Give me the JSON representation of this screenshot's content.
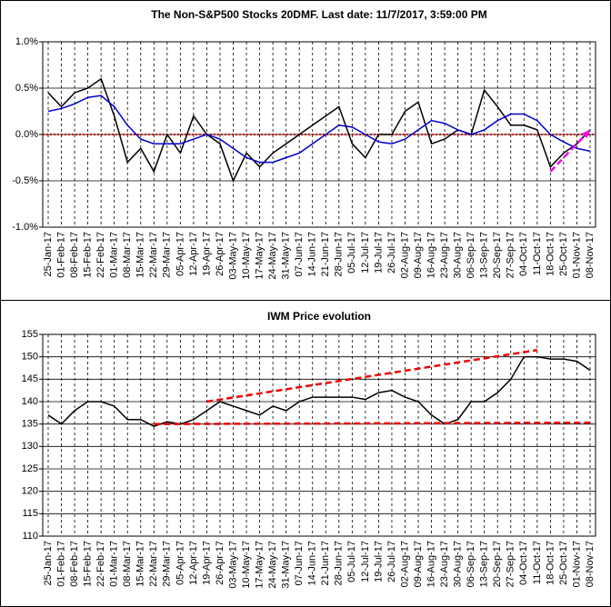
{
  "chart_data": [
    {
      "type": "line",
      "title": "The Non-S&P500 Stocks 20DMF. Last date: 11/7/2017, 3:59:00 PM",
      "categories": [
        "25-Jan-17",
        "01-Feb-17",
        "08-Feb-17",
        "15-Feb-17",
        "22-Feb-17",
        "01-Mar-17",
        "08-Mar-17",
        "15-Mar-17",
        "22-Mar-17",
        "29-Mar-17",
        "05-Apr-17",
        "12-Apr-17",
        "19-Apr-17",
        "26-Apr-17",
        "03-May-17",
        "10-May-17",
        "17-May-17",
        "24-May-17",
        "31-May-17",
        "07-Jun-17",
        "14-Jun-17",
        "21-Jun-17",
        "28-Jun-17",
        "05-Jul-17",
        "12-Jul-17",
        "19-Jul-17",
        "26-Jul-17",
        "02-Aug-17",
        "09-Aug-17",
        "16-Aug-17",
        "23-Aug-17",
        "30-Aug-17",
        "06-Sep-17",
        "13-Sep-17",
        "20-Sep-17",
        "27-Sep-17",
        "04-Oct-17",
        "11-Oct-17",
        "18-Oct-17",
        "25-Oct-17",
        "01-Nov-17",
        "08-Nov-17"
      ],
      "series": [
        {
          "color": "#000000",
          "values": [
            0.45,
            0.3,
            0.45,
            0.5,
            0.6,
            0.2,
            -0.3,
            -0.15,
            -0.4,
            0.0,
            -0.2,
            0.2,
            0.0,
            -0.1,
            -0.5,
            -0.2,
            -0.35,
            -0.2,
            -0.1,
            0.0,
            0.1,
            0.2,
            0.3,
            -0.1,
            -0.25,
            0.0,
            0.0,
            0.25,
            0.35,
            -0.1,
            -0.05,
            0.05,
            0.0,
            0.48,
            0.3,
            0.1,
            0.1,
            0.05,
            -0.35,
            -0.2,
            -0.1,
            0.05
          ]
        },
        {
          "color": "#0000cc",
          "values": [
            0.25,
            0.28,
            0.33,
            0.4,
            0.42,
            0.3,
            0.1,
            -0.05,
            -0.1,
            -0.1,
            -0.1,
            -0.05,
            0.0,
            -0.05,
            -0.15,
            -0.25,
            -0.3,
            -0.3,
            -0.25,
            -0.2,
            -0.1,
            0.0,
            0.1,
            0.08,
            0.0,
            -0.08,
            -0.1,
            -0.05,
            0.05,
            0.15,
            0.12,
            0.05,
            0.0,
            0.05,
            0.15,
            0.22,
            0.22,
            0.15,
            0.0,
            -0.08,
            -0.15,
            -0.18
          ]
        }
      ],
      "reference_lines": [
        {
          "value": 0,
          "color": "#cc0000",
          "style": "dotted"
        }
      ],
      "trendlines": [
        {
          "start": "18-Oct-17",
          "start_value": -0.4,
          "end": "08-Nov-17",
          "end_value": 0.05,
          "color": "#ee00ee",
          "style": "dashed",
          "arrow": true
        }
      ],
      "ylim": [
        -1,
        1
      ],
      "yticks": [
        {
          "value": -1,
          "label": "-1.0%"
        },
        {
          "value": -0.5,
          "label": "-0.5%"
        },
        {
          "value": 0,
          "label": "0.0%"
        },
        {
          "value": 0.5,
          "label": "0.5%"
        },
        {
          "value": 1,
          "label": "1.0%"
        }
      ],
      "grid": true
    },
    {
      "type": "line",
      "title": "IWM Price evolution",
      "categories": [
        "25-Jan-17",
        "01-Feb-17",
        "08-Feb-17",
        "15-Feb-17",
        "22-Feb-17",
        "01-Mar-17",
        "08-Mar-17",
        "15-Mar-17",
        "22-Mar-17",
        "29-Mar-17",
        "05-Apr-17",
        "12-Apr-17",
        "19-Apr-17",
        "26-Apr-17",
        "03-May-17",
        "10-May-17",
        "17-May-17",
        "24-May-17",
        "31-May-17",
        "07-Jun-17",
        "14-Jun-17",
        "21-Jun-17",
        "28-Jun-17",
        "05-Jul-17",
        "12-Jul-17",
        "19-Jul-17",
        "26-Jul-17",
        "02-Aug-17",
        "09-Aug-17",
        "16-Aug-17",
        "23-Aug-17",
        "30-Aug-17",
        "06-Sep-17",
        "13-Sep-17",
        "20-Sep-17",
        "27-Sep-17",
        "04-Oct-17",
        "11-Oct-17",
        "18-Oct-17",
        "25-Oct-17",
        "01-Nov-17",
        "08-Nov-17"
      ],
      "series": [
        {
          "color": "#000000",
          "values": [
            137,
            135,
            138,
            140,
            140,
            139,
            136,
            136,
            134.5,
            135.5,
            135,
            136,
            138,
            140,
            139,
            138,
            137,
            139,
            138,
            140,
            141,
            141,
            141,
            141,
            140.5,
            142,
            142.5,
            141,
            140,
            137,
            135,
            136,
            140,
            140,
            142,
            145,
            150,
            150,
            149.5,
            149.5,
            149,
            147
          ]
        }
      ],
      "trendlines": [
        {
          "start": "19-Apr-17",
          "start_value": 140,
          "end": "11-Oct-17",
          "end_value": 151.5,
          "color": "#ee0000",
          "style": "dashed"
        },
        {
          "start": "22-Mar-17",
          "start_value": 135,
          "end": "08-Nov-17",
          "end_value": 135.3,
          "color": "#ee0000",
          "style": "dashed"
        }
      ],
      "ylim": [
        110,
        155
      ],
      "yticks": [
        110,
        115,
        120,
        125,
        130,
        135,
        140,
        145,
        150,
        155
      ],
      "grid": true
    }
  ]
}
